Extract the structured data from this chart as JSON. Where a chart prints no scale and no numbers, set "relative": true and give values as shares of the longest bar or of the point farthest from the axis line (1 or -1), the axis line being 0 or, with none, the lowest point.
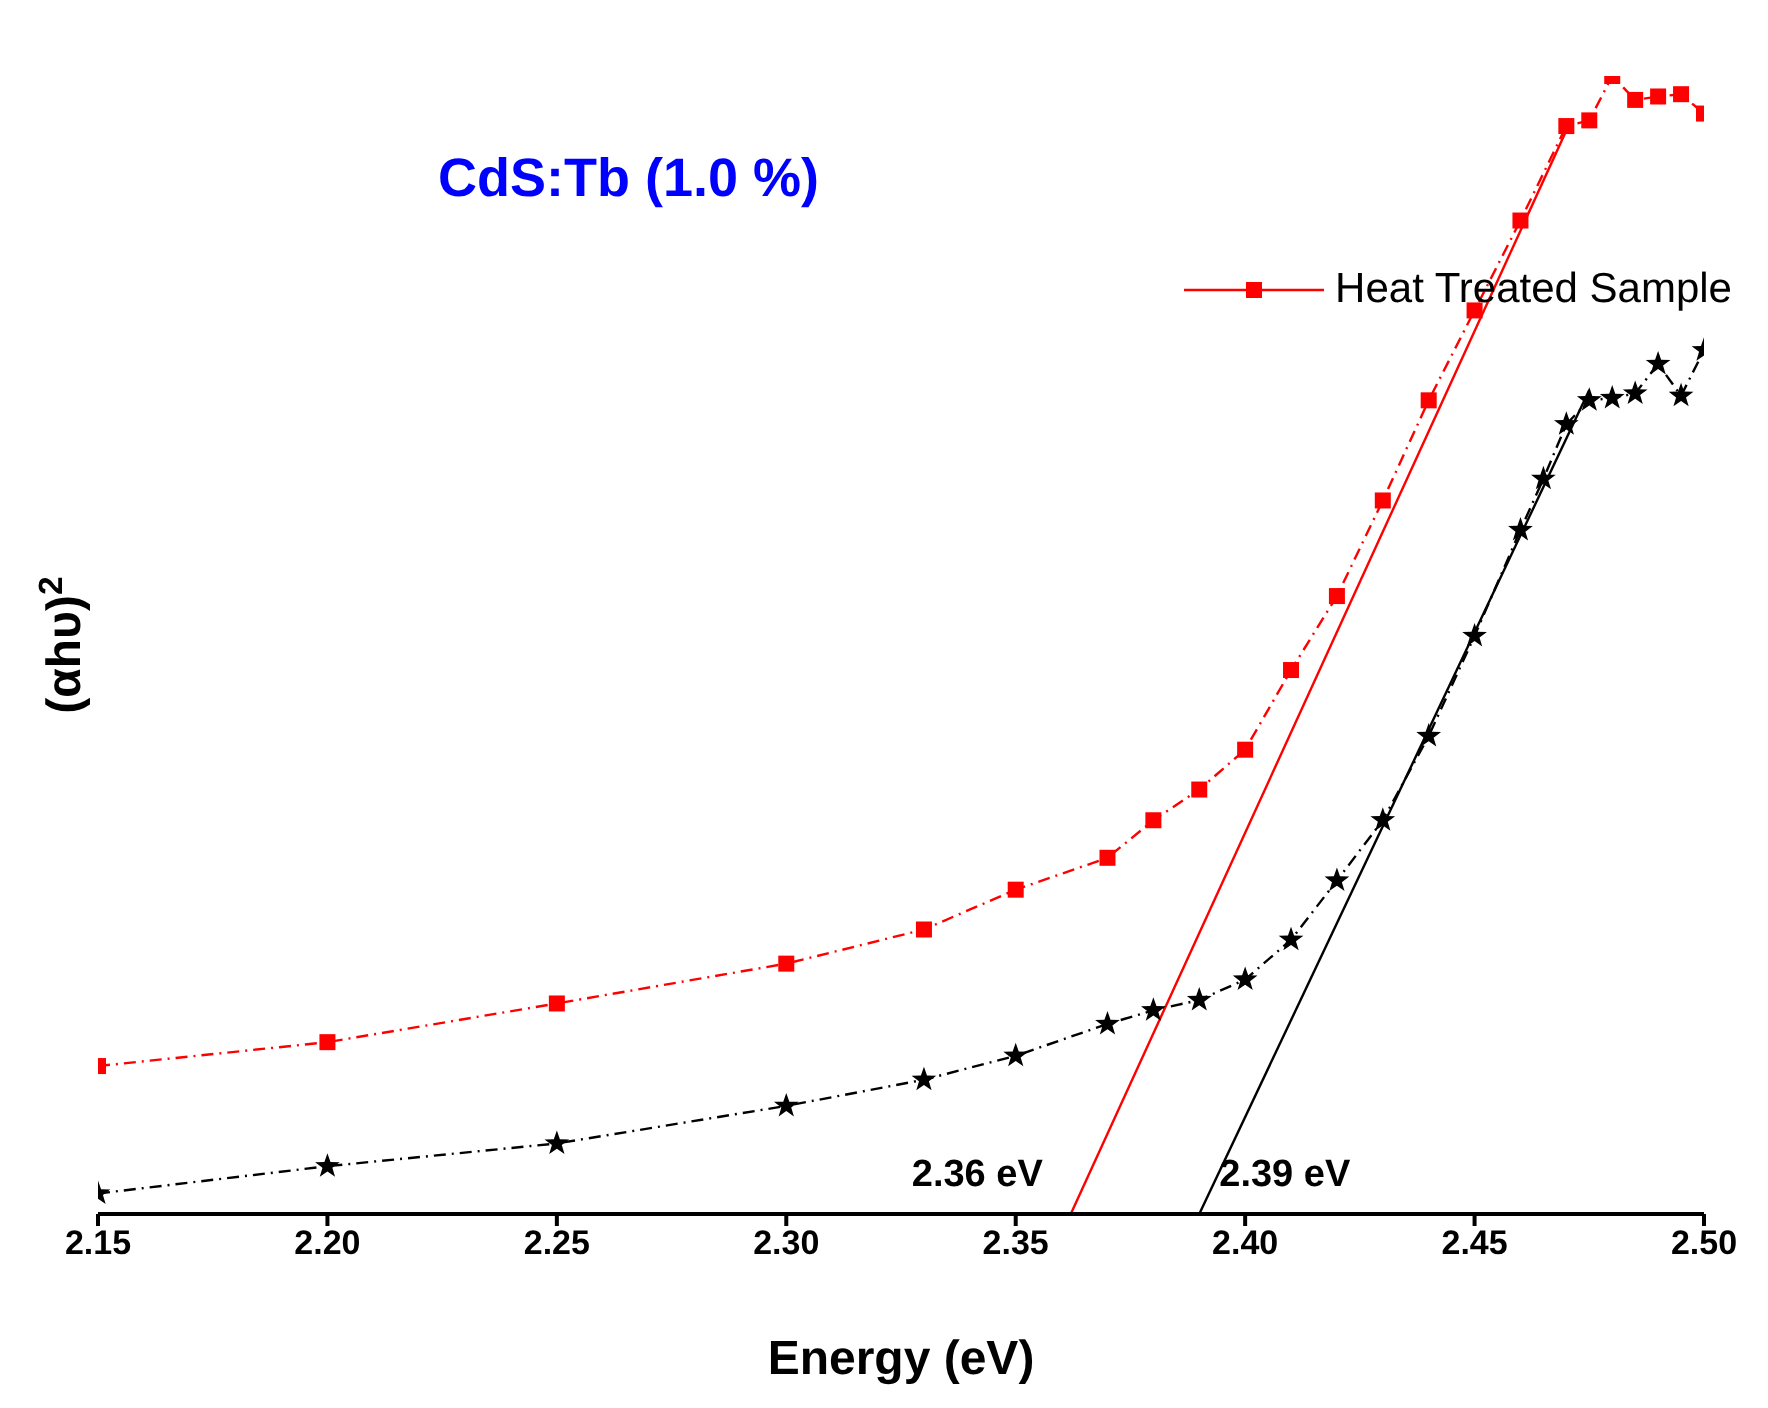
{
  "chart_data": {
    "type": "line",
    "xlabel": "Energy   (eV)",
    "ylabel": "(αhυ)$^{2}$",
    "relative": true,
    "legend": "top right",
    "xlim": [
      2.15,
      2.5
    ],
    "xticks": [
      {
        "value": 2.15,
        "label": "2.15"
      },
      {
        "value": 2.2,
        "label": "2.20"
      },
      {
        "value": 2.25,
        "label": "2.25"
      },
      {
        "value": 2.3,
        "label": "2.30"
      },
      {
        "value": 2.35,
        "label": "2.35"
      },
      {
        "value": 2.4,
        "label": "2.40"
      },
      {
        "value": 2.45,
        "label": "2.45"
      },
      {
        "value": 2.5,
        "label": "2.50"
      }
    ],
    "annotations": [
      "CdS:Tb (1.0 %)",
      {
        "text": "2.36 eV",
        "x": 2.362,
        "y": 0
      },
      {
        "text": "2.39 eV",
        "x": 2.39,
        "y": 0
      }
    ],
    "series": [
      {
        "name": "Heat Treated Sample",
        "color": "#ff0000",
        "marker": "square",
        "line_style": "dashed",
        "x": [
          2.15,
          2.2,
          2.25,
          2.3,
          2.33,
          2.35,
          2.37,
          2.38,
          2.39,
          2.4,
          2.41,
          2.42,
          2.43,
          2.44,
          2.45,
          2.46,
          2.47,
          2.475,
          2.48,
          2.485,
          2.49,
          2.495,
          2.5
        ],
        "values": [
          0.13,
          0.151,
          0.185,
          0.22,
          0.25,
          0.285,
          0.313,
          0.346,
          0.373,
          0.408,
          0.478,
          0.543,
          0.627,
          0.715,
          0.794,
          0.873,
          0.956,
          0.961,
          1.0,
          0.979,
          0.982,
          0.984,
          0.967
        ]
      },
      {
        "color": "#000000",
        "marker": "star",
        "line_style": "dashed",
        "x": [
          2.15,
          2.2,
          2.25,
          2.3,
          2.33,
          2.35,
          2.37,
          2.38,
          2.39,
          2.4,
          2.41,
          2.42,
          2.43,
          2.44,
          2.45,
          2.46,
          2.465,
          2.47,
          2.475,
          2.48,
          2.485,
          2.49,
          2.495,
          2.5
        ],
        "values": [
          0.018,
          0.042,
          0.062,
          0.095,
          0.118,
          0.139,
          0.167,
          0.179,
          0.188,
          0.206,
          0.241,
          0.293,
          0.346,
          0.42,
          0.508,
          0.601,
          0.646,
          0.694,
          0.715,
          0.717,
          0.721,
          0.747,
          0.719,
          0.759
        ]
      },
      {
        "color": "#ff0000",
        "marker": "none",
        "line_style": "solid",
        "x": [
          2.362,
          2.471
        ],
        "values": [
          0,
          0.961
        ]
      },
      {
        "color": "#000000",
        "marker": "none",
        "line_style": "solid",
        "x": [
          2.39,
          2.475
        ],
        "values": [
          0,
          0.724
        ]
      }
    ]
  }
}
